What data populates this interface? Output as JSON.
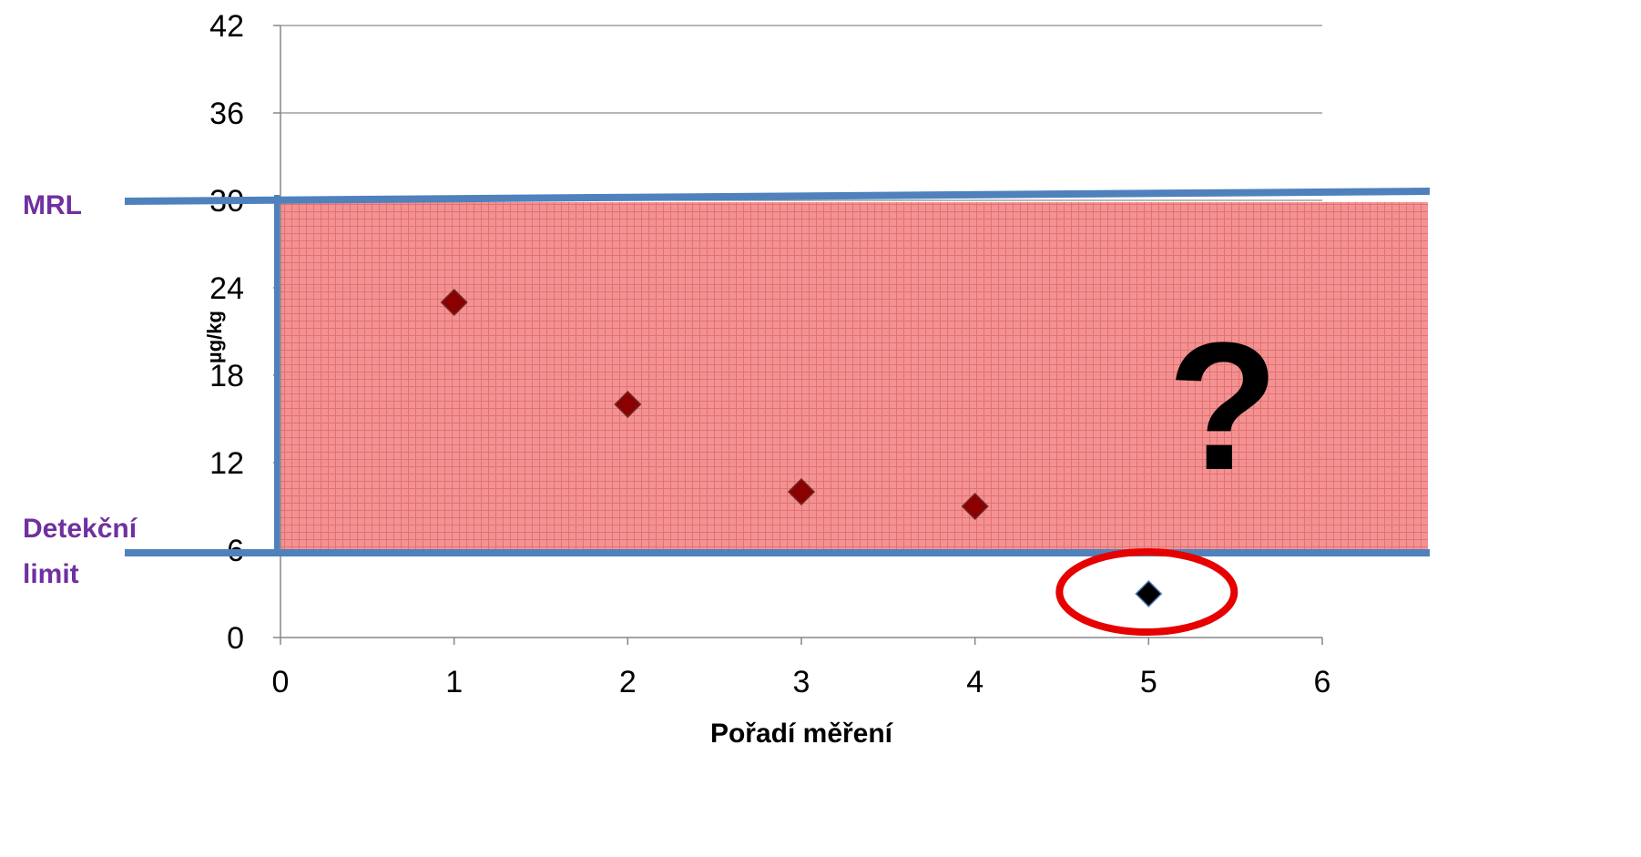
{
  "chart_data": {
    "type": "scatter",
    "xlabel": "Pořadí měření",
    "ylabel": "µg/kg",
    "xlim": [
      0,
      6
    ],
    "ylim": [
      0,
      42
    ],
    "xticks": [
      0,
      1,
      2,
      3,
      4,
      5,
      6
    ],
    "yticks": [
      0,
      6,
      12,
      18,
      24,
      30,
      36,
      42
    ],
    "grid": "horizontal",
    "series": [
      {
        "points": [
          {
            "x": 1,
            "y": 23
          },
          {
            "x": 2,
            "y": 16
          },
          {
            "x": 3,
            "y": 10
          },
          {
            "x": 4,
            "y": 9
          },
          {
            "x": 5,
            "y": 3
          }
        ]
      }
    ],
    "bands": [
      {
        "from": 6,
        "to": 30,
        "color": "#f08080"
      }
    ],
    "reference_lines": [
      {
        "label": "MRL",
        "y": 30
      },
      {
        "label_lines": [
          "Detekční",
          "limit"
        ],
        "y": 6
      }
    ],
    "annotations": {
      "question_mark": "?",
      "highlighted_point_x": 5
    },
    "colors": {
      "marker_in_band": "#8b0000",
      "marker_highlight": "#000000",
      "reference_line": "#4f81bd",
      "label": "#7030a0",
      "highlight_ellipse": "#e60000",
      "grid": "#8c8c8c"
    }
  }
}
